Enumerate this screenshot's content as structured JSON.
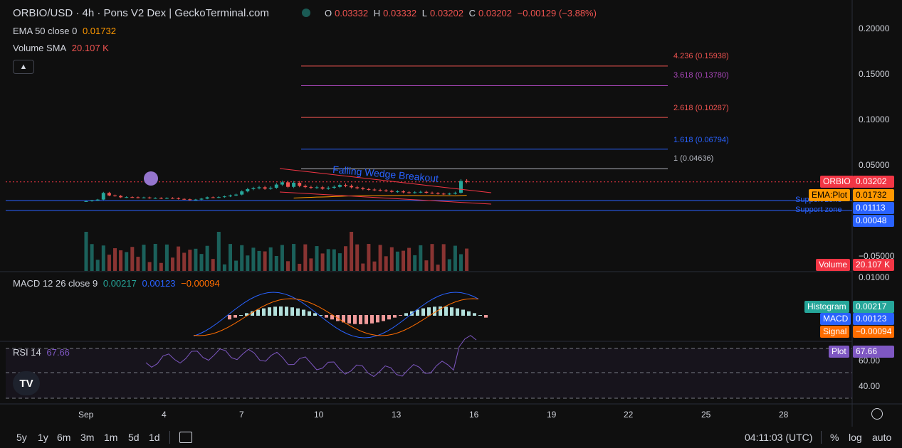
{
  "header": {
    "title": "ORBIO/USD · 4h · Pons V2 Dex | GeckoTerminal.com",
    "ohlc": {
      "o_label": "O",
      "o": "0.03332",
      "h_label": "H",
      "h": "0.03332",
      "l_label": "L",
      "l": "0.03202",
      "c_label": "C",
      "c": "0.03202",
      "change": "−0.00129 (−3.88%)"
    }
  },
  "indicators": {
    "ema": {
      "label": "EMA 50 close 0",
      "value": "0.01732"
    },
    "volume": {
      "label": "Volume SMA",
      "value": "20.107 K"
    },
    "macd": {
      "label": "MACD 12 26 close 9",
      "v1": "0.00217",
      "v2": "0.00123",
      "v3": "−0.00094"
    },
    "rsi": {
      "label": "RSI 14",
      "value": "67.66"
    }
  },
  "annotations": {
    "wedge": "Falling Wedge Breakout",
    "support1": "Support zone",
    "support2": "Support zone",
    "fib": [
      {
        "label": "4.236 (0.15938)",
        "color": "#ef5350",
        "value": 0.15938
      },
      {
        "label": "3.618 (0.13780)",
        "color": "#ab47bc",
        "value": 0.1378
      },
      {
        "label": "2.618 (0.10287)",
        "color": "#ef5350",
        "value": 0.10287
      },
      {
        "label": "1.618 (0.06794)",
        "color": "#2962ff",
        "value": 0.06794
      },
      {
        "label": "1 (0.04636)",
        "color": "#b2b5be",
        "value": 0.04636
      }
    ]
  },
  "price_tags": {
    "orbio": {
      "name": "ORBIO",
      "value": "0.03202",
      "color": "#f23645"
    },
    "ema": {
      "name": "EMA:Plot",
      "value": "0.01732",
      "color": "#ff9800"
    },
    "support1": {
      "value": "0.01113",
      "color": "#2962ff"
    },
    "support2": {
      "value": "0.00048",
      "color": "#2962ff"
    },
    "volume": {
      "name": "Volume",
      "value": "20.107 K",
      "color": "#f23645"
    },
    "histogram": {
      "name": "Histogram",
      "value": "0.00217",
      "color": "#26a69a"
    },
    "macd": {
      "name": "MACD",
      "value": "0.00123",
      "color": "#2962ff"
    },
    "signal": {
      "name": "Signal",
      "value": "−0.00094",
      "color": "#ff6d00"
    },
    "rsi": {
      "name": "Plot",
      "value": "67.66",
      "color": "#7e57c2"
    }
  },
  "axes": {
    "price_ticks": [
      "0.20000",
      "0.15000",
      "0.10000",
      "0.05000",
      "−0.05000",
      "0.01000"
    ],
    "rsi_ticks": [
      "60.00",
      "40.00"
    ],
    "date_ticks": [
      "Sep",
      "4",
      "7",
      "10",
      "13",
      "16",
      "19",
      "22",
      "25",
      "28"
    ]
  },
  "bottom_bar": {
    "ranges": [
      "5y",
      "1y",
      "6m",
      "3m",
      "1m",
      "5d",
      "1d"
    ],
    "time": "04:11:03 (UTC)",
    "percent": "%",
    "log": "log",
    "auto": "auto"
  },
  "chart_data": {
    "type": "candlestick",
    "title": "ORBIO/USD · 4h · Pons V2 Dex | GeckoTerminal.com",
    "ylim": [
      -0.065,
      0.21
    ],
    "x_range_days": [
      "Aug 31",
      "Sep 30"
    ],
    "close_series": [
      0.0107,
      0.0115,
      0.0125,
      0.0198,
      0.017,
      0.0165,
      0.015,
      0.0152,
      0.015,
      0.0145,
      0.0148,
      0.014,
      0.0142,
      0.0138,
      0.0142,
      0.014,
      0.0132,
      0.0128,
      0.012,
      0.0125,
      0.0135,
      0.015,
      0.0148,
      0.0152,
      0.016,
      0.017,
      0.018,
      0.0215,
      0.024,
      0.025,
      0.026,
      0.0245,
      0.0255,
      0.029,
      0.0315,
      0.0265,
      0.031,
      0.0275,
      0.0262,
      0.0255,
      0.026,
      0.0245,
      0.0255,
      0.0265,
      0.0285,
      0.0275,
      0.026,
      0.025,
      0.024,
      0.0235,
      0.023,
      0.0225,
      0.022,
      0.021,
      0.0215,
      0.0205,
      0.02,
      0.0205,
      0.021,
      0.02,
      0.0195,
      0.019,
      0.0185,
      0.019,
      0.02,
      0.033,
      0.032
    ],
    "volume_sma": 20107,
    "ema50": 0.01732,
    "macd": {
      "histogram": 0.00217,
      "macd": 0.00123,
      "signal": -0.00094
    },
    "rsi": 67.66
  }
}
